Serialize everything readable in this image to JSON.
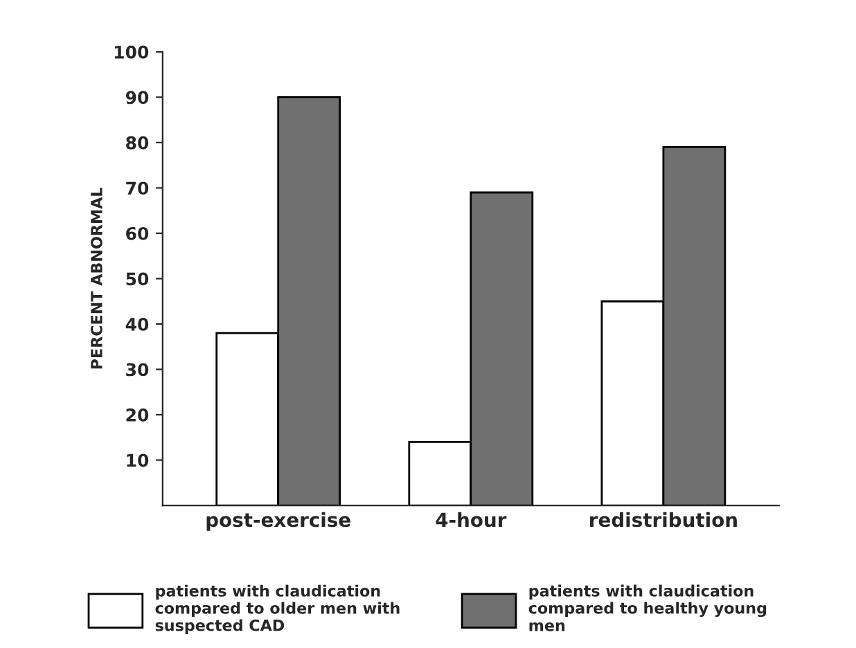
{
  "chart_data": {
    "type": "bar",
    "ylabel": "PERCENT ABNORMAL",
    "categories": [
      "post-exercise",
      "4-hour",
      "redistribution"
    ],
    "series": [
      {
        "name": "patients with claudication\ncompared to older men with\nsuspected CAD",
        "color": "#ffffff",
        "values": [
          38,
          14,
          45
        ]
      },
      {
        "name": "patients with claudication\ncompared to healthy young\nmen",
        "color": "#707070",
        "values": [
          90,
          69,
          79
        ]
      }
    ],
    "ylim": [
      0,
      100
    ],
    "yticks": [
      10,
      20,
      30,
      40,
      50,
      60,
      70,
      80,
      90,
      100
    ],
    "legend": "bottom",
    "grid": false
  }
}
